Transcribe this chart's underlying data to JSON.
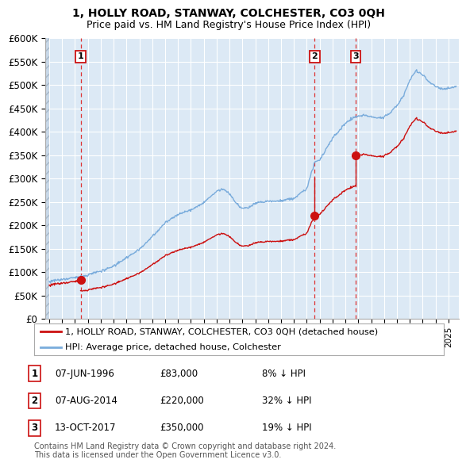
{
  "title": "1, HOLLY ROAD, STANWAY, COLCHESTER, CO3 0QH",
  "subtitle": "Price paid vs. HM Land Registry's House Price Index (HPI)",
  "ylim": [
    0,
    600000
  ],
  "yticks": [
    0,
    50000,
    100000,
    150000,
    200000,
    250000,
    300000,
    350000,
    400000,
    450000,
    500000,
    550000,
    600000
  ],
  "ytick_labels": [
    "£0",
    "£50K",
    "£100K",
    "£150K",
    "£200K",
    "£250K",
    "£300K",
    "£350K",
    "£400K",
    "£450K",
    "£500K",
    "£550K",
    "£600K"
  ],
  "background_color": "#ffffff",
  "plot_bg_color": "#dce9f5",
  "grid_color": "#ffffff",
  "hpi_color": "#7aacdc",
  "price_color": "#cc1111",
  "vline_color": "#dd3333",
  "sale_times": [
    1996.44,
    2014.6,
    2017.78
  ],
  "sale_prices": [
    83000,
    220000,
    350000
  ],
  "sale_labels": [
    "1",
    "2",
    "3"
  ],
  "xlim_start": 1993.7,
  "xlim_end": 2025.8,
  "hatch_end": 1994.0,
  "legend_entries": [
    "1, HOLLY ROAD, STANWAY, COLCHESTER, CO3 0QH (detached house)",
    "HPI: Average price, detached house, Colchester"
  ],
  "table_rows": [
    {
      "num": "1",
      "date": "07-JUN-1996",
      "price": "£83,000",
      "hpi": "8% ↓ HPI"
    },
    {
      "num": "2",
      "date": "07-AUG-2014",
      "price": "£220,000",
      "hpi": "32% ↓ HPI"
    },
    {
      "num": "3",
      "date": "13-OCT-2017",
      "price": "£350,000",
      "hpi": "19% ↓ HPI"
    }
  ],
  "footer": "Contains HM Land Registry data © Crown copyright and database right 2024.\nThis data is licensed under the Open Government Licence v3.0.",
  "title_fontsize": 10,
  "subtitle_fontsize": 9,
  "tick_fontsize": 8.5
}
